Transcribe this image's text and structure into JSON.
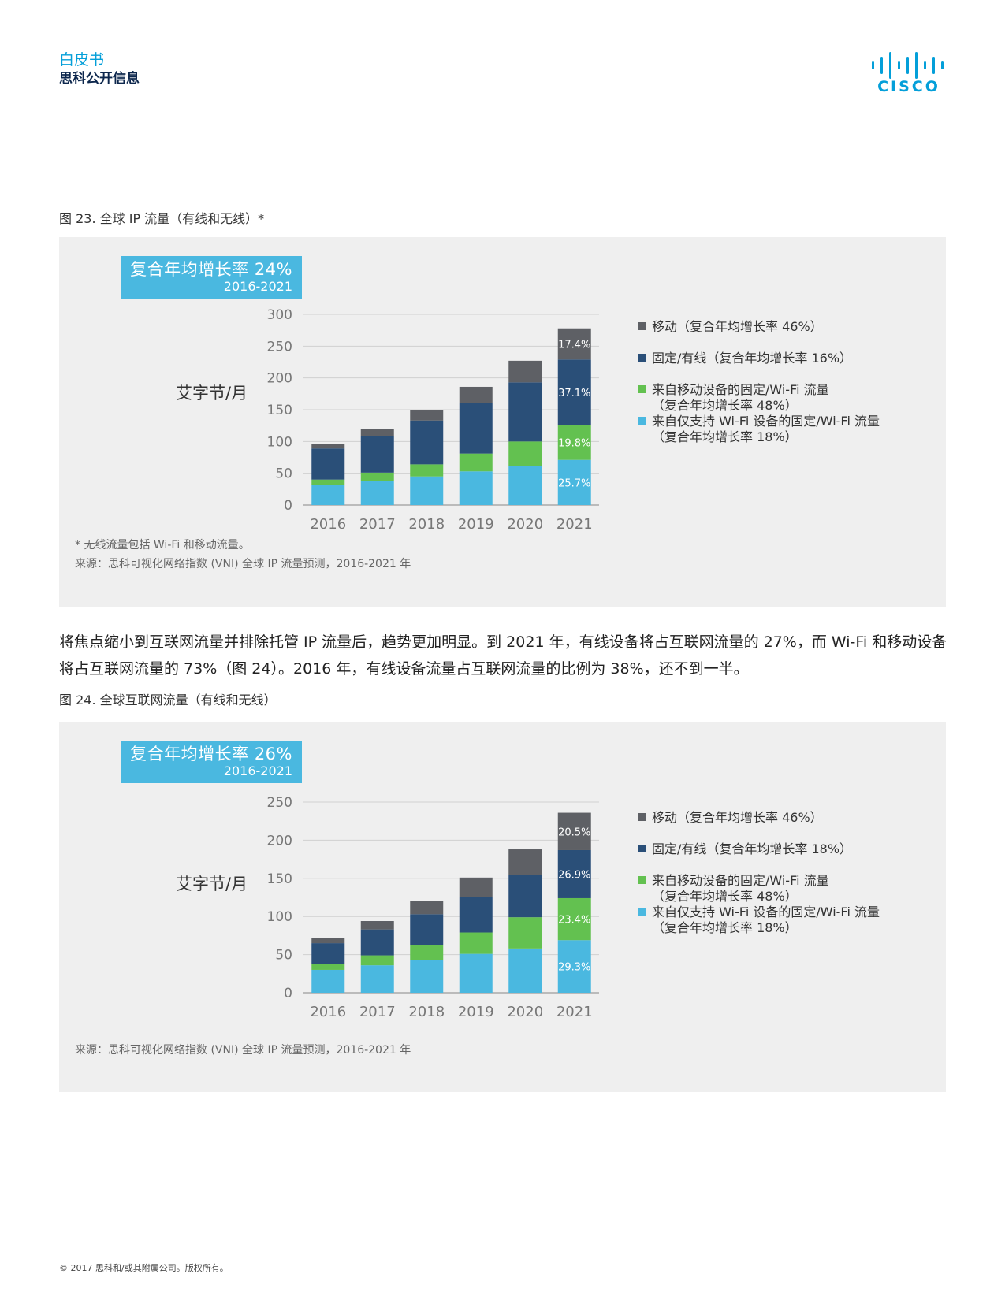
{
  "header": {
    "doc_type": "白皮书",
    "doc_sub": "思科公开信息",
    "logo_text": "CISCO"
  },
  "colors": {
    "mobile": "#5e6065",
    "fixed_wired": "#2a4f78",
    "wifi_from_mobile": "#63c150",
    "wifi_only": "#4ab8e0",
    "brand": "#049fd9"
  },
  "figure23": {
    "caption_num": "图 23.",
    "caption_text": "全球 IP 流量（有线和无线）*",
    "cagr_title": "复合年均增长率 24%",
    "cagr_years": "2016-2021",
    "ylabel": "艾字节/月",
    "note1": "* 无线流量包括 Wi-Fi 和移动流量。",
    "note2": "来源：思科可视化网络指数 (VNI) 全球 IP 流量预测，2016-2021 年",
    "legend": [
      {
        "label": "移动（复合年均增长率 46%）",
        "sub": ""
      },
      {
        "label": "固定/有线（复合年均增长率 16%）",
        "sub": ""
      },
      {
        "label": "来自移动设备的固定/Wi-Fi 流量",
        "sub": "（复合年均增长率 48%）"
      },
      {
        "label": "来自仅支持 Wi-Fi 设备的固定/Wi-Fi 流量",
        "sub": "（复合年均增长率 18%）"
      }
    ]
  },
  "figure24": {
    "caption_num": "图 24.",
    "caption_text": "全球互联网流量（有线和无线）",
    "cagr_title": "复合年均增长率 26%",
    "cagr_years": "2016-2021",
    "ylabel": "艾字节/月",
    "note1": "来源：思科可视化网络指数 (VNI) 全球 IP 流量预测，2016-2021 年",
    "legend": [
      {
        "label": "移动（复合年均增长率 46%）",
        "sub": ""
      },
      {
        "label": "固定/有线（复合年均增长率 18%）",
        "sub": ""
      },
      {
        "label": "来自移动设备的固定/Wi-Fi 流量",
        "sub": "（复合年均增长率 48%）"
      },
      {
        "label": "来自仅支持 Wi-Fi 设备的固定/Wi-Fi 流量",
        "sub": "（复合年均增长率 18%）"
      }
    ]
  },
  "body_text": "将焦点缩小到互联网流量并排除托管 IP 流量后，趋势更加明显。到 2021 年，有线设备将占互联网流量的 27%，而 Wi-Fi 和移动设备将占互联网流量的 73%（图 24）。2016 年，有线设备流量占互联网流量的比例为 38%，还不到一半。",
  "footer": "© 2017 思科和/或其附属公司。版权所有。",
  "chart_data": [
    {
      "type": "bar",
      "stacked": true,
      "categories": [
        "2016",
        "2017",
        "2018",
        "2019",
        "2020",
        "2021"
      ],
      "ylabel": "艾字节/月",
      "ylim": [
        0,
        300
      ],
      "yticks": [
        0,
        50,
        100,
        150,
        200,
        250,
        300
      ],
      "grid": true,
      "legend_position": "right",
      "series": [
        {
          "name": "来自仅支持 Wi-Fi 设备的固定/Wi-Fi 流量",
          "color": "#4ab8e0",
          "values": [
            32,
            38,
            45,
            53,
            61,
            71
          ]
        },
        {
          "name": "来自移动设备的固定/Wi-Fi 流量",
          "color": "#63c150",
          "values": [
            8,
            13,
            19,
            28,
            39,
            55
          ]
        },
        {
          "name": "固定/有线",
          "color": "#2a4f78",
          "values": [
            49,
            58,
            69,
            80,
            93,
            103
          ]
        },
        {
          "name": "移动",
          "color": "#5e6065",
          "values": [
            7,
            11,
            17,
            25,
            34,
            49
          ]
        }
      ],
      "data_labels": [
        {
          "series": 0,
          "category": "2021",
          "text": "25.7%"
        },
        {
          "series": 1,
          "category": "2021",
          "text": "19.8%"
        },
        {
          "series": 2,
          "category": "2021",
          "text": "37.1%"
        },
        {
          "series": 3,
          "category": "2021",
          "text": "17.4%"
        }
      ]
    },
    {
      "type": "bar",
      "stacked": true,
      "categories": [
        "2016",
        "2017",
        "2018",
        "2019",
        "2020",
        "2021"
      ],
      "ylabel": "艾字节/月",
      "ylim": [
        0,
        250
      ],
      "yticks": [
        0,
        50,
        100,
        150,
        200,
        250
      ],
      "grid": true,
      "legend_position": "right",
      "series": [
        {
          "name": "来自仅支持 Wi-Fi 设备的固定/Wi-Fi 流量",
          "color": "#4ab8e0",
          "values": [
            30,
            36,
            43,
            51,
            58,
            69
          ]
        },
        {
          "name": "来自移动设备的固定/Wi-Fi 流量",
          "color": "#63c150",
          "values": [
            8,
            13,
            19,
            28,
            41,
            55
          ]
        },
        {
          "name": "固定/有线",
          "color": "#2a4f78",
          "values": [
            27,
            34,
            41,
            47,
            55,
            63
          ]
        },
        {
          "name": "移动",
          "color": "#5e6065",
          "values": [
            7,
            11,
            17,
            25,
            34,
            49
          ]
        }
      ],
      "data_labels": [
        {
          "series": 0,
          "category": "2021",
          "text": "29.3%"
        },
        {
          "series": 1,
          "category": "2021",
          "text": "23.4%"
        },
        {
          "series": 2,
          "category": "2021",
          "text": "26.9%"
        },
        {
          "series": 3,
          "category": "2021",
          "text": "20.5%"
        }
      ]
    }
  ]
}
